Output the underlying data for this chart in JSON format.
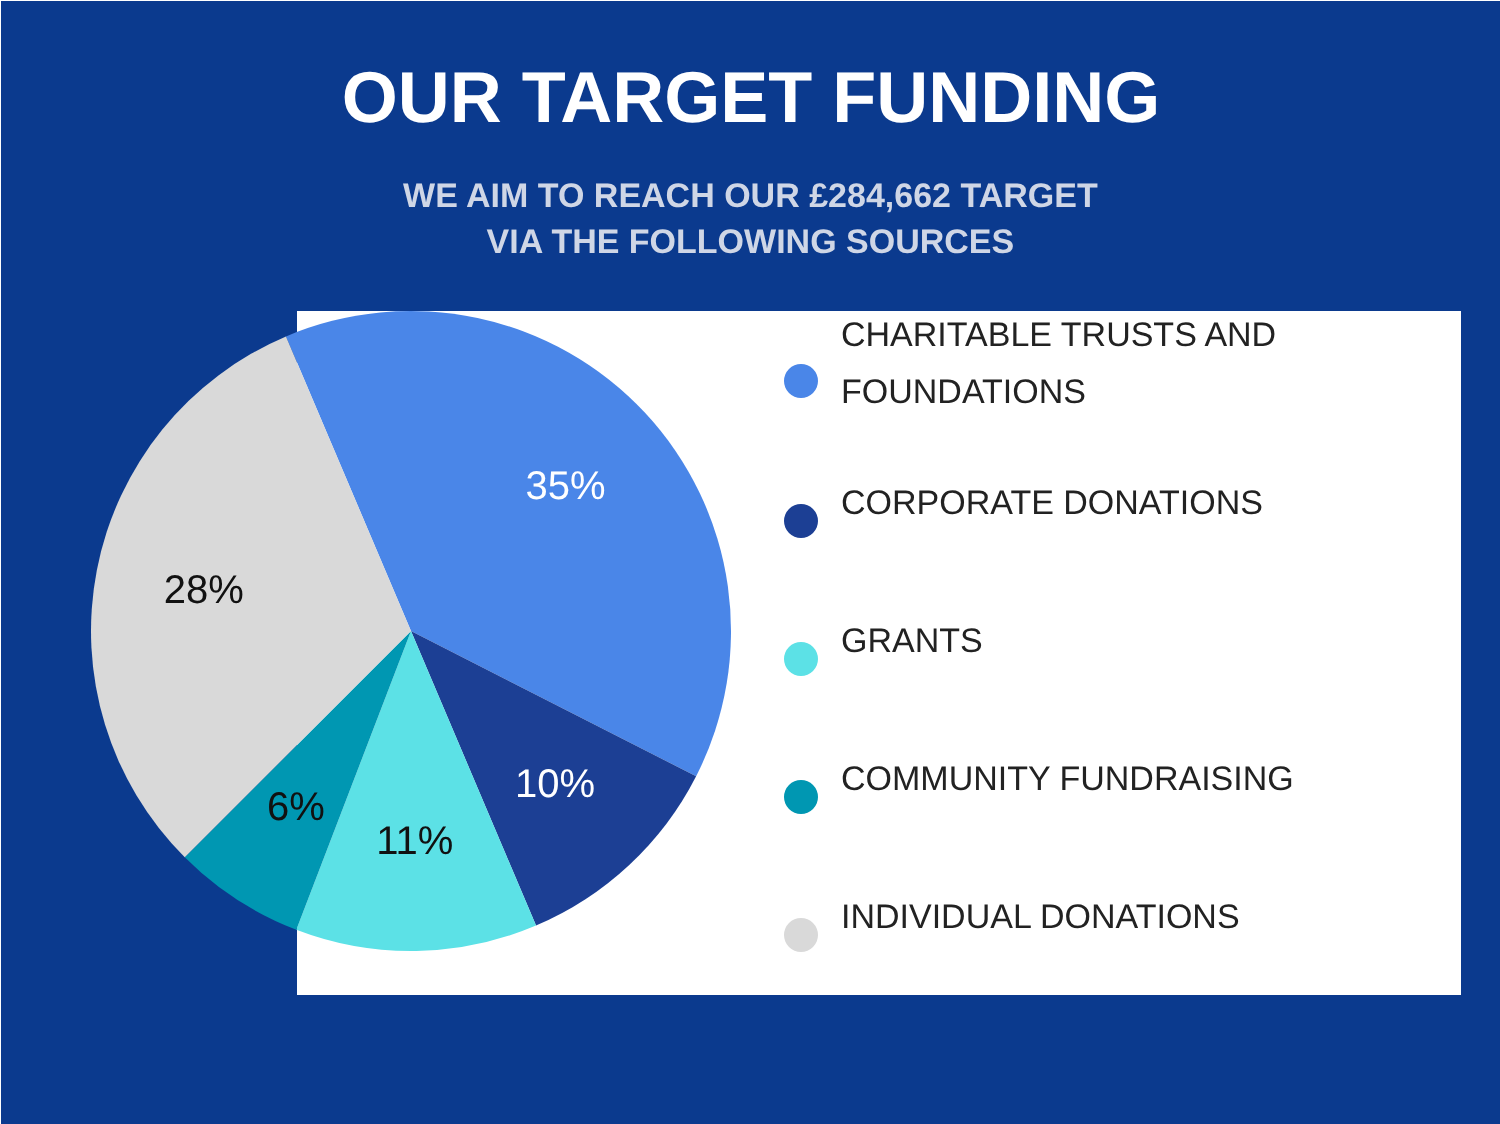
{
  "chart_data": {
    "type": "pie",
    "title": "OUR TARGET FUNDING",
    "subtitle": "WE AIM TO REACH OUR £284,662 TARGET\nVIA THE FOLLOWING SOURCES",
    "categories": [
      "CHARITABLE TRUSTS AND FOUNDATIONS",
      "CORPORATE DONATIONS",
      "GRANTS",
      "COMMUNITY FUNDRAISING",
      "INDIVIDUAL DONATIONS"
    ],
    "values": [
      35,
      10,
      11,
      6,
      28
    ],
    "colors": [
      "#4a86e8",
      "#1c3f94",
      "#5ce1e6",
      "#0097b2",
      "#d9d9d9"
    ],
    "value_labels": [
      "35%",
      "10%",
      "11%",
      "6%",
      "28%"
    ],
    "legend": "right"
  }
}
